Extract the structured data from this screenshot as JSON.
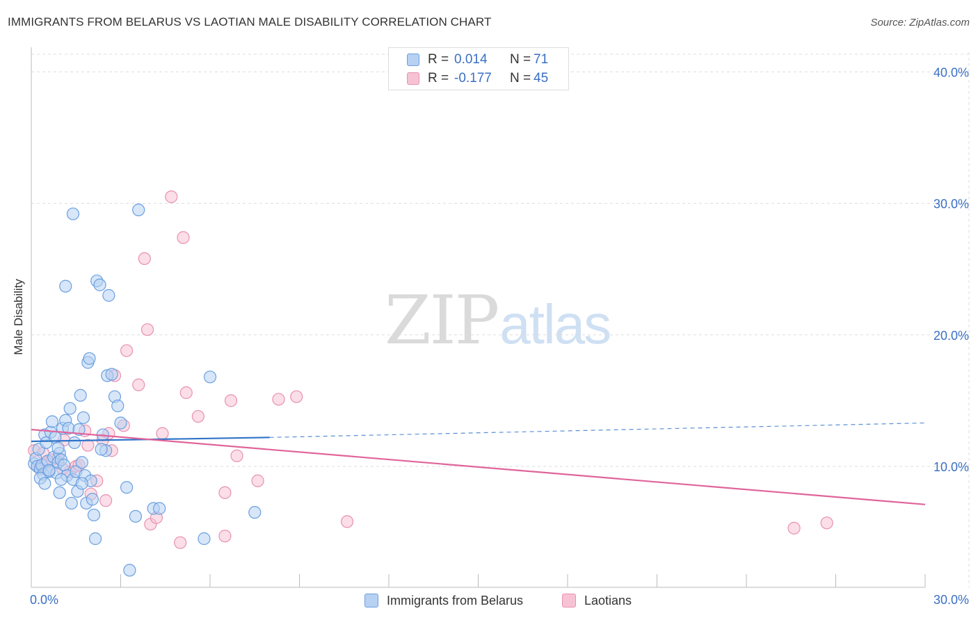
{
  "title": "IMMIGRANTS FROM BELARUS VS LAOTIAN MALE DISABILITY CORRELATION CHART",
  "source": "Source: ZipAtlas.com",
  "watermark": {
    "zip": "ZIP",
    "atlas": "atlas"
  },
  "legend": {
    "r_label": "R =",
    "n_label": "N =",
    "rows": [
      {
        "series": "Immigrants from Belarus",
        "r": "0.014",
        "n": "71"
      },
      {
        "series": "Laotians",
        "r": "-0.177",
        "n": "45"
      }
    ]
  },
  "colors": {
    "blue_fill": "#b7d1f3",
    "blue_stroke": "#6a9fe0",
    "blue_line": "#2f73c9",
    "pink_fill": "#f7c3d4",
    "pink_stroke": "#e890b0",
    "pink_line": "#e0649a",
    "grid": "#dddddd",
    "tick_text": "#3a6fc4"
  },
  "chart_data": {
    "type": "scatter",
    "title": "IMMIGRANTS FROM BELARUS VS LAOTIAN MALE DISABILITY CORRELATION CHART",
    "xlabel": "",
    "ylabel": "Male Disability",
    "xlim": [
      0,
      30
    ],
    "ylim": [
      0.8,
      41.5
    ],
    "x_tick_labels": [
      {
        "value": 0,
        "label": "0.0%"
      },
      {
        "value": 30,
        "label": "30.0%"
      }
    ],
    "y_tick_labels": [
      {
        "value": 10,
        "label": "10.0%"
      },
      {
        "value": 20,
        "label": "20.0%"
      },
      {
        "value": 30,
        "label": "30.0%"
      },
      {
        "value": 40,
        "label": "40.0%"
      }
    ],
    "grid": true,
    "series": [
      {
        "name": "Immigrants from Belarus",
        "color": "#6a9fe0",
        "trend": {
          "x": [
            0,
            8
          ],
          "y": [
            11.9,
            12.2
          ],
          "dashed_to_x": 30,
          "dashed_to_y": 13.3
        },
        "points": [
          [
            0.1,
            10.2
          ],
          [
            0.15,
            10.6
          ],
          [
            0.2,
            10.0
          ],
          [
            0.25,
            11.3
          ],
          [
            0.3,
            9.8
          ],
          [
            0.35,
            10.1
          ],
          [
            0.4,
            9.4
          ],
          [
            0.45,
            12.4
          ],
          [
            0.5,
            11.8
          ],
          [
            0.55,
            10.4
          ],
          [
            0.6,
            9.6
          ],
          [
            0.65,
            12.6
          ],
          [
            0.7,
            13.4
          ],
          [
            0.75,
            10.7
          ],
          [
            0.8,
            12.2
          ],
          [
            0.85,
            9.5
          ],
          [
            0.9,
            10.3
          ],
          [
            0.95,
            11.0
          ],
          [
            1.0,
            10.5
          ],
          [
            1.05,
            12.9
          ],
          [
            1.1,
            10.1
          ],
          [
            1.15,
            13.5
          ],
          [
            1.2,
            9.3
          ],
          [
            1.25,
            12.9
          ],
          [
            1.3,
            14.4
          ],
          [
            1.35,
            7.2
          ],
          [
            1.4,
            9.0
          ],
          [
            1.45,
            11.8
          ],
          [
            1.5,
            9.6
          ],
          [
            1.55,
            8.1
          ],
          [
            1.6,
            12.8
          ],
          [
            1.65,
            15.4
          ],
          [
            1.7,
            10.3
          ],
          [
            1.75,
            13.7
          ],
          [
            1.8,
            9.3
          ],
          [
            1.85,
            7.2
          ],
          [
            1.9,
            17.9
          ],
          [
            1.95,
            18.2
          ],
          [
            2.0,
            8.9
          ],
          [
            2.05,
            7.5
          ],
          [
            2.1,
            6.3
          ],
          [
            2.15,
            4.5
          ],
          [
            2.2,
            24.1
          ],
          [
            2.3,
            23.8
          ],
          [
            2.4,
            12.4
          ],
          [
            2.5,
            11.2
          ],
          [
            2.55,
            16.9
          ],
          [
            2.6,
            23.0
          ],
          [
            2.7,
            17.0
          ],
          [
            2.8,
            15.3
          ],
          [
            2.9,
            14.6
          ],
          [
            3.0,
            13.3
          ],
          [
            3.2,
            8.4
          ],
          [
            3.3,
            2.1
          ],
          [
            3.5,
            6.2
          ],
          [
            3.6,
            29.5
          ],
          [
            4.1,
            6.8
          ],
          [
            4.3,
            6.8
          ],
          [
            5.8,
            4.5
          ],
          [
            6.0,
            16.8
          ],
          [
            7.5,
            6.5
          ],
          [
            1.4,
            29.2
          ],
          [
            1.15,
            23.7
          ],
          [
            0.3,
            9.1
          ],
          [
            0.6,
            9.7
          ],
          [
            0.9,
            11.4
          ],
          [
            1.0,
            9.0
          ],
          [
            0.45,
            8.7
          ],
          [
            0.95,
            8.0
          ],
          [
            2.35,
            11.3
          ],
          [
            1.7,
            8.7
          ]
        ]
      },
      {
        "name": "Laotians",
        "color": "#e890b0",
        "trend": {
          "x": [
            0,
            30
          ],
          "y": [
            12.8,
            7.1
          ]
        },
        "points": [
          [
            0.1,
            11.2
          ],
          [
            0.2,
            10.0
          ],
          [
            0.3,
            9.9
          ],
          [
            0.4,
            11.0
          ],
          [
            0.5,
            10.3
          ],
          [
            0.6,
            9.7
          ],
          [
            0.7,
            10.5
          ],
          [
            0.9,
            10.6
          ],
          [
            1.1,
            12.0
          ],
          [
            1.3,
            9.6
          ],
          [
            1.5,
            10.0
          ],
          [
            1.6,
            10.1
          ],
          [
            1.8,
            12.7
          ],
          [
            1.9,
            11.6
          ],
          [
            2.0,
            7.9
          ],
          [
            2.2,
            8.9
          ],
          [
            2.4,
            12.0
          ],
          [
            2.5,
            7.4
          ],
          [
            2.6,
            12.5
          ],
          [
            2.7,
            11.2
          ],
          [
            2.8,
            16.9
          ],
          [
            3.1,
            13.1
          ],
          [
            3.2,
            18.8
          ],
          [
            3.6,
            16.2
          ],
          [
            3.8,
            25.8
          ],
          [
            3.9,
            20.4
          ],
          [
            4.0,
            5.6
          ],
          [
            4.2,
            6.1
          ],
          [
            4.4,
            12.5
          ],
          [
            4.7,
            30.5
          ],
          [
            5.0,
            4.2
          ],
          [
            5.1,
            27.4
          ],
          [
            5.2,
            15.6
          ],
          [
            5.6,
            13.8
          ],
          [
            6.5,
            8.0
          ],
          [
            6.5,
            4.7
          ],
          [
            6.7,
            15.0
          ],
          [
            6.9,
            10.8
          ],
          [
            7.6,
            8.9
          ],
          [
            8.3,
            15.1
          ],
          [
            8.9,
            15.3
          ],
          [
            10.6,
            5.8
          ],
          [
            25.6,
            5.3
          ],
          [
            26.7,
            5.7
          ],
          [
            1.05,
            9.8
          ]
        ]
      }
    ]
  }
}
